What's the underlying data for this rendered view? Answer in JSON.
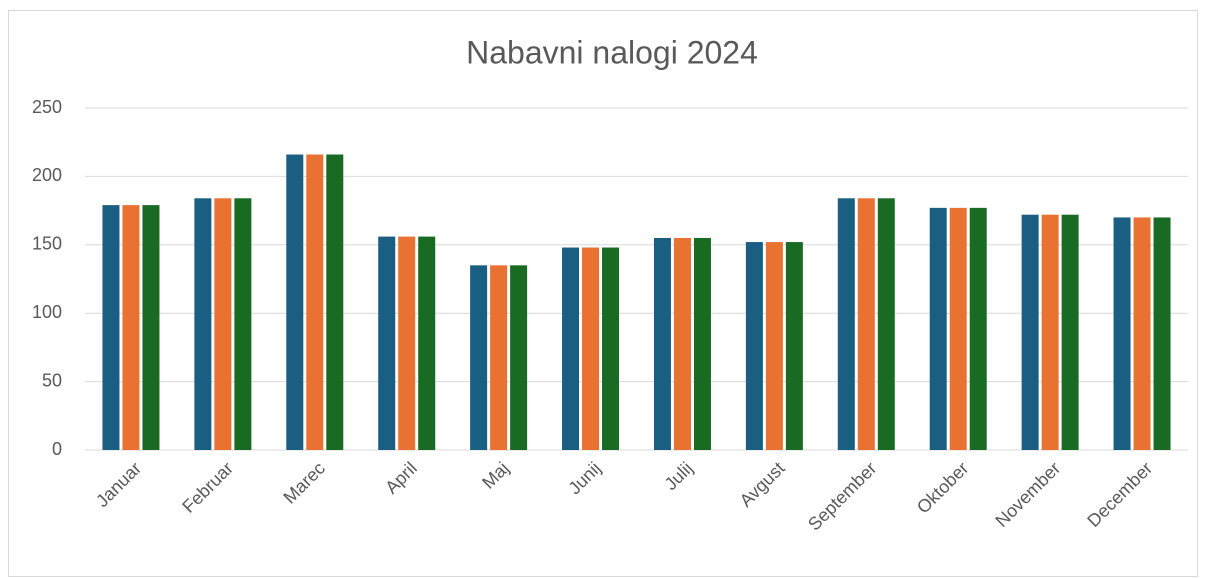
{
  "chart_data": {
    "type": "bar",
    "title": "Nabavni nalogi 2024",
    "categories": [
      "Januar",
      "Februar",
      "Marec",
      "April",
      "Maj",
      "Junij",
      "Julij",
      "Avgust",
      "September",
      "Oktober",
      "November",
      "December"
    ],
    "series": [
      {
        "color": "#1a5e82",
        "values": [
          179,
          184,
          216,
          156,
          135,
          148,
          155,
          152,
          184,
          177,
          172,
          170
        ]
      },
      {
        "color": "#e97132",
        "values": [
          179,
          184,
          216,
          156,
          135,
          148,
          155,
          152,
          184,
          177,
          172,
          170
        ]
      },
      {
        "color": "#196b24",
        "values": [
          179,
          184,
          216,
          156,
          135,
          148,
          155,
          152,
          184,
          177,
          172,
          170
        ]
      }
    ],
    "ylim": [
      0,
      250
    ],
    "yticks": [
      0,
      50,
      100,
      150,
      200,
      250
    ],
    "grid": true
  }
}
